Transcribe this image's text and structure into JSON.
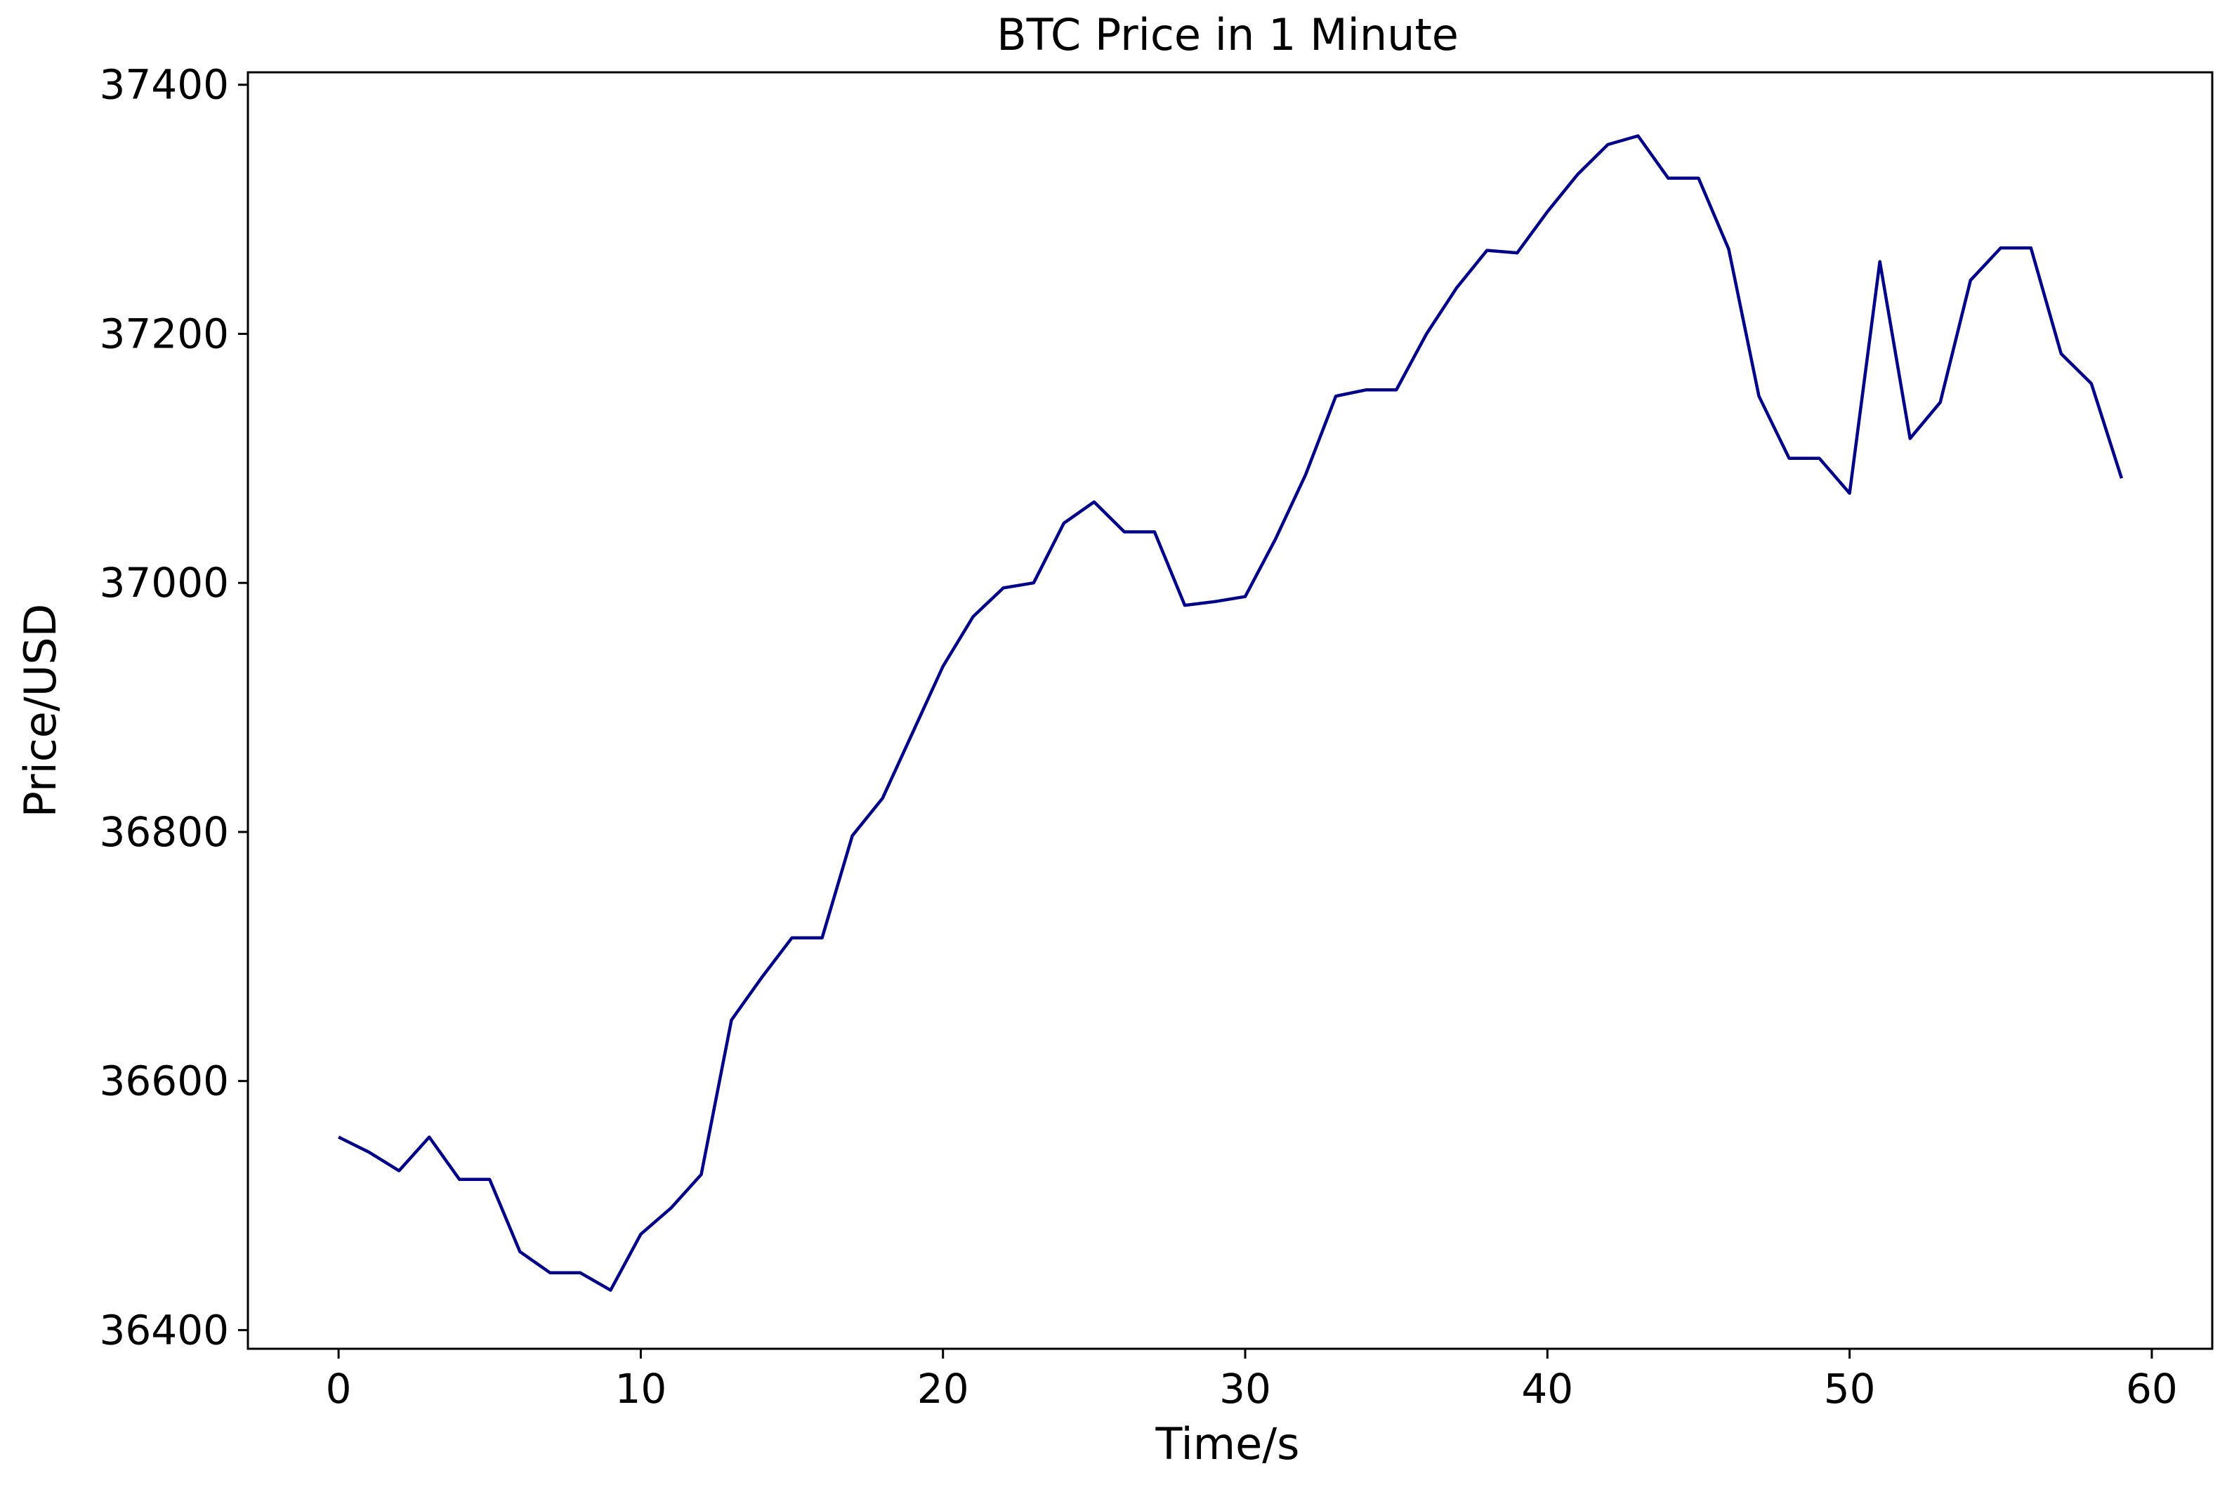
{
  "chart_data": {
    "type": "line",
    "title": "BTC Price in 1 Minute",
    "xlabel": "Time/s",
    "ylabel": "Price/USD",
    "xlim": [
      -3,
      62
    ],
    "ylim": [
      36385,
      37410
    ],
    "xticks": [
      0,
      10,
      20,
      30,
      40,
      50,
      60
    ],
    "yticks": [
      36400,
      36600,
      36800,
      37000,
      37200,
      37400
    ],
    "grid": false,
    "legend": "none",
    "series": [
      {
        "color": "#00008b",
        "x": [
          0,
          1,
          2,
          3,
          4,
          5,
          6,
          7,
          8,
          9,
          10,
          11,
          12,
          13,
          14,
          15,
          16,
          17,
          18,
          19,
          20,
          21,
          22,
          23,
          24,
          25,
          26,
          27,
          28,
          29,
          30,
          31,
          32,
          33,
          34,
          35,
          36,
          37,
          38,
          39,
          40,
          41,
          42,
          43,
          44,
          45,
          46,
          47,
          48,
          49,
          50,
          51,
          52,
          53,
          54,
          55,
          56,
          57,
          58,
          59
        ],
        "y": [
          36555,
          36543,
          36528,
          36555,
          36521,
          36521,
          36463,
          36446,
          36446,
          36432,
          36477,
          36498,
          36525,
          36649,
          36683,
          36715,
          36715,
          36797,
          36827,
          36880,
          36933,
          36973,
          36996,
          37000,
          37048,
          37065,
          37041,
          37041,
          36982,
          36985,
          36989,
          37035,
          37087,
          37150,
          37155,
          37155,
          37200,
          37237,
          37267,
          37265,
          37298,
          37328,
          37352,
          37359,
          37325,
          37325,
          37268,
          37150,
          37100,
          37100,
          37072,
          37258,
          37116,
          37145,
          37243,
          37269,
          37269,
          37184,
          37160,
          37084
        ]
      }
    ]
  }
}
